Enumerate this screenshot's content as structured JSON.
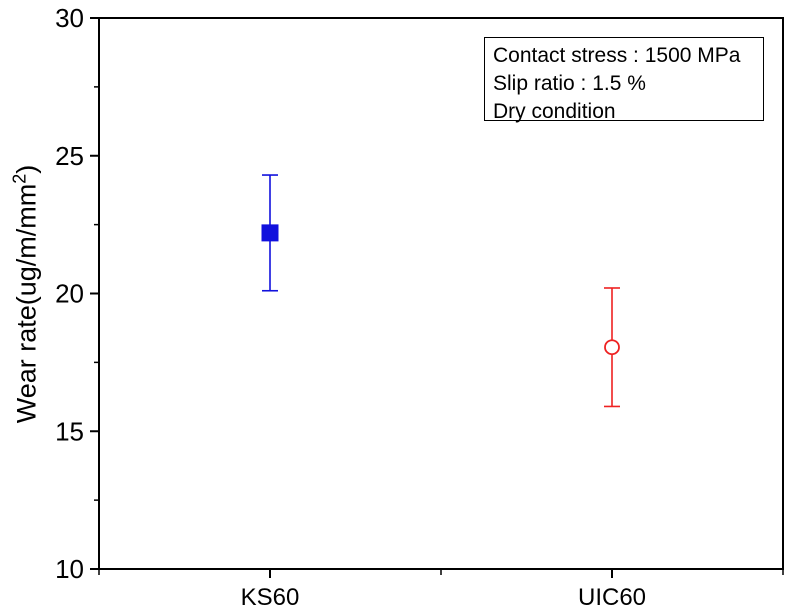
{
  "chart_data": {
    "type": "scatter",
    "title": "",
    "xlabel": "",
    "ylabel": {
      "prefix": "Wear rate(ug/m/mm",
      "sup": "2",
      "suffix": ")"
    },
    "categories": [
      "KS60",
      "UIC60"
    ],
    "series": [
      {
        "name": "KS60",
        "category_index": 0,
        "value": 22.2,
        "error_plus": 2.1,
        "error_minus": 2.1,
        "marker": "filled-square",
        "color": "#1111dd"
      },
      {
        "name": "UIC60",
        "category_index": 1,
        "value": 18.05,
        "error_plus": 2.15,
        "error_minus": 2.15,
        "marker": "open-circle",
        "color": "#ee2222"
      }
    ],
    "ylim": [
      10,
      30
    ],
    "xlim": [
      0.5,
      2.5
    ],
    "yticks": [
      10,
      15,
      20,
      25,
      30
    ],
    "yticks_minor": [
      12.5,
      17.5,
      22.5,
      27.5
    ],
    "xticks_major_at_categories": [
      1,
      2
    ],
    "xticks_minor": [
      0.5,
      1.5,
      2.5
    ],
    "grid": false,
    "legend_position": "none",
    "frame_color": "#000000",
    "background_color": "#ffffff",
    "annotation": {
      "lines": [
        "Contact stress : 1500 MPa",
        "Slip ratio : 1.5 %",
        "Dry condition"
      ]
    }
  }
}
